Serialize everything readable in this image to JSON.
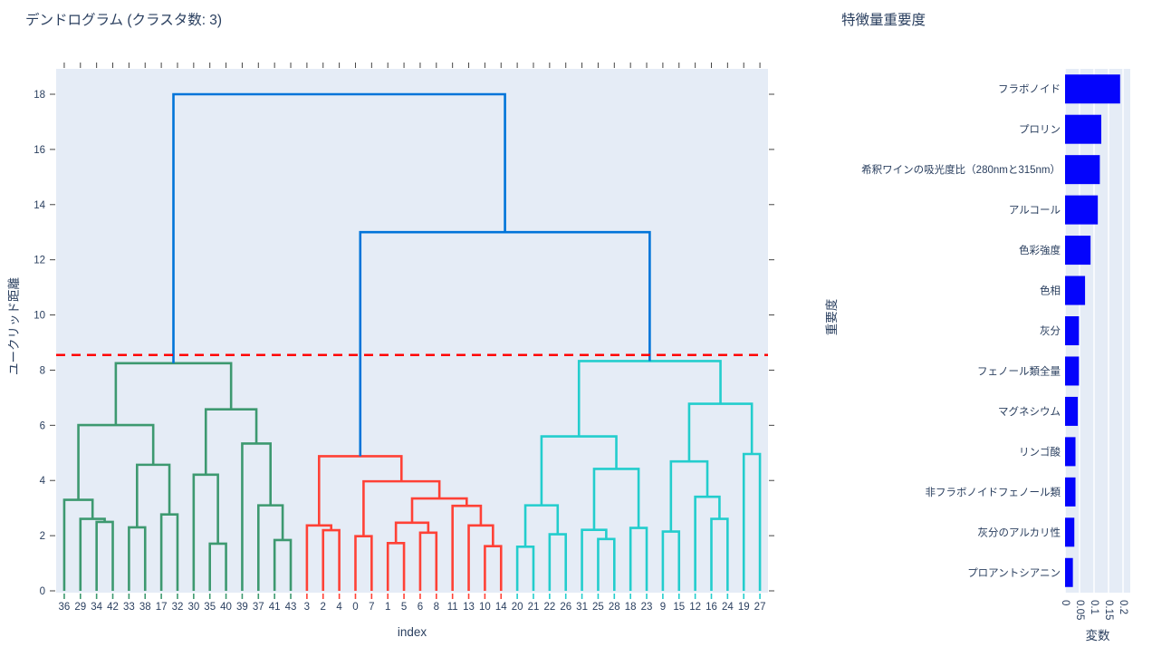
{
  "chart_data": [
    {
      "type": "dendrogram",
      "title": "デンドログラム (クラスタ数: 3)",
      "xlabel": "index",
      "ylabel": "ユークリッド距離",
      "n_clusters": 3,
      "plot_bg": "#E5ECF6",
      "ylim": [
        0,
        18.95
      ],
      "yticks": [
        0,
        2,
        4,
        6,
        8,
        10,
        12,
        14,
        16,
        18
      ],
      "leaf_labels": [
        "36",
        "29",
        "34",
        "42",
        "33",
        "38",
        "17",
        "32",
        "30",
        "35",
        "40",
        "39",
        "37",
        "41",
        "43",
        "3",
        "2",
        "4",
        "0",
        "7",
        "1",
        "5",
        "6",
        "8",
        "11",
        "13",
        "10",
        "14",
        "20",
        "21",
        "22",
        "26",
        "31",
        "25",
        "28",
        "18",
        "23",
        "9",
        "15",
        "12",
        "16",
        "24",
        "19",
        "27"
      ],
      "leaf_cluster": [
        "green",
        "green",
        "green",
        "green",
        "green",
        "green",
        "green",
        "green",
        "green",
        "green",
        "green",
        "green",
        "green",
        "green",
        "green",
        "red",
        "red",
        "red",
        "red",
        "red",
        "red",
        "red",
        "red",
        "red",
        "red",
        "red",
        "red",
        "red",
        "cyan",
        "cyan",
        "cyan",
        "cyan",
        "cyan",
        "cyan",
        "cyan",
        "cyan",
        "cyan",
        "cyan",
        "cyan",
        "cyan",
        "cyan",
        "cyan",
        "cyan",
        "cyan"
      ],
      "link_colors": {
        "green": "#3D9970",
        "red": "#FF4136",
        "cyan": "#23CDCD",
        "blue": "#0074D9"
      },
      "threshold": {
        "y": 8.55,
        "color": "#FF0000",
        "style": "dashed"
      },
      "tick_color": "#444444",
      "label_color": "#2a3f5f",
      "links": [
        [
          2,
          0,
          3,
          0,
          2.5,
          "green"
        ],
        [
          1,
          0,
          2.5,
          2.5,
          2.61,
          "green"
        ],
        [
          0,
          0,
          1.75,
          2.61,
          3.3,
          "green"
        ],
        [
          4,
          0,
          5,
          0,
          2.3,
          "green"
        ],
        [
          6,
          0,
          7,
          0,
          2.77,
          "green"
        ],
        [
          4.5,
          2.3,
          6.5,
          2.77,
          4.57,
          "green"
        ],
        [
          0.875,
          3.3,
          5.5,
          4.57,
          6.01,
          "green"
        ],
        [
          9,
          0,
          10,
          0,
          1.71,
          "green"
        ],
        [
          8,
          0,
          9.5,
          1.71,
          4.21,
          "green"
        ],
        [
          13,
          0,
          14,
          0,
          1.84,
          "green"
        ],
        [
          12,
          0,
          13.5,
          1.84,
          3.1,
          "green"
        ],
        [
          11,
          0,
          12.75,
          3.1,
          5.34,
          "green"
        ],
        [
          8.75,
          4.21,
          11.875,
          5.34,
          6.58,
          "green"
        ],
        [
          3.1875,
          6.01,
          10.3125,
          6.58,
          8.25,
          "green"
        ],
        [
          16,
          0,
          17,
          0,
          2.2,
          "red"
        ],
        [
          15,
          0,
          16.5,
          2.2,
          2.37,
          "red"
        ],
        [
          18,
          0,
          19,
          0,
          1.98,
          "red"
        ],
        [
          20,
          0,
          21,
          0,
          1.73,
          "red"
        ],
        [
          22,
          0,
          23,
          0,
          2.11,
          "red"
        ],
        [
          20.5,
          1.73,
          22.5,
          2.11,
          2.47,
          "red"
        ],
        [
          26,
          0,
          27,
          0,
          1.62,
          "red"
        ],
        [
          25,
          0,
          26.5,
          1.62,
          2.37,
          "red"
        ],
        [
          24,
          0,
          25.75,
          2.37,
          3.08,
          "red"
        ],
        [
          21.5,
          2.47,
          24.875,
          3.08,
          3.35,
          "red"
        ],
        [
          18.5,
          1.98,
          23.1875,
          3.35,
          3.97,
          "red"
        ],
        [
          15.75,
          2.37,
          20.84375,
          3.97,
          4.88,
          "red"
        ],
        [
          28,
          0,
          29,
          0,
          1.6,
          "cyan"
        ],
        [
          30,
          0,
          31,
          0,
          2.05,
          "cyan"
        ],
        [
          28.5,
          1.6,
          30.5,
          2.05,
          3.1,
          "cyan"
        ],
        [
          33,
          0,
          34,
          0,
          1.88,
          "cyan"
        ],
        [
          32,
          0,
          33.5,
          1.88,
          2.21,
          "cyan"
        ],
        [
          35,
          0,
          36,
          0,
          2.28,
          "cyan"
        ],
        [
          32.75,
          2.21,
          35.5,
          2.28,
          4.42,
          "cyan"
        ],
        [
          29.5,
          3.1,
          34.125,
          4.42,
          5.6,
          "cyan"
        ],
        [
          37,
          0,
          38,
          0,
          2.15,
          "cyan"
        ],
        [
          40,
          0,
          41,
          0,
          2.61,
          "cyan"
        ],
        [
          39,
          0,
          40.5,
          2.61,
          3.41,
          "cyan"
        ],
        [
          37.5,
          2.15,
          39.75,
          3.41,
          4.69,
          "cyan"
        ],
        [
          42,
          0,
          43,
          0,
          4.96,
          "cyan"
        ],
        [
          38.625,
          4.69,
          42.5,
          4.96,
          6.78,
          "cyan"
        ],
        [
          31.8125,
          5.6,
          40.5625,
          6.78,
          8.33,
          "cyan"
        ],
        [
          18.296875,
          4.88,
          36.1875,
          8.33,
          13.0,
          "blue"
        ],
        [
          6.75,
          8.25,
          27.2421875,
          13.0,
          18.0,
          "blue"
        ]
      ]
    },
    {
      "type": "bar",
      "orientation": "horizontal",
      "title": "特徴量重要度",
      "xlabel": "変数",
      "ylabel": "重要度",
      "plot_bg": "#E5ECF6",
      "bar_color": "#0404FC",
      "label_color": "#2a3f5f",
      "xlim": [
        0,
        0.225
      ],
      "xticks": [
        0,
        0.05,
        0.1,
        0.15,
        0.2
      ],
      "xtick_labels": [
        "0",
        "0.05",
        "0.1",
        "0.15",
        "0.2"
      ],
      "categories": [
        "フラボノイド",
        "プロリン",
        "希釈ワインの吸光度比（280nmと315nm）",
        "アルコール",
        "色彩強度",
        "色相",
        "灰分",
        "フェノール類全量",
        "マグネシウム",
        "リンゴ酸",
        "非フラボノイドフェノール類",
        "灰分のアルカリ性",
        "プロアントシアニン"
      ],
      "values": [
        0.19,
        0.125,
        0.12,
        0.113,
        0.088,
        0.069,
        0.048,
        0.048,
        0.044,
        0.036,
        0.036,
        0.032,
        0.027
      ]
    }
  ]
}
